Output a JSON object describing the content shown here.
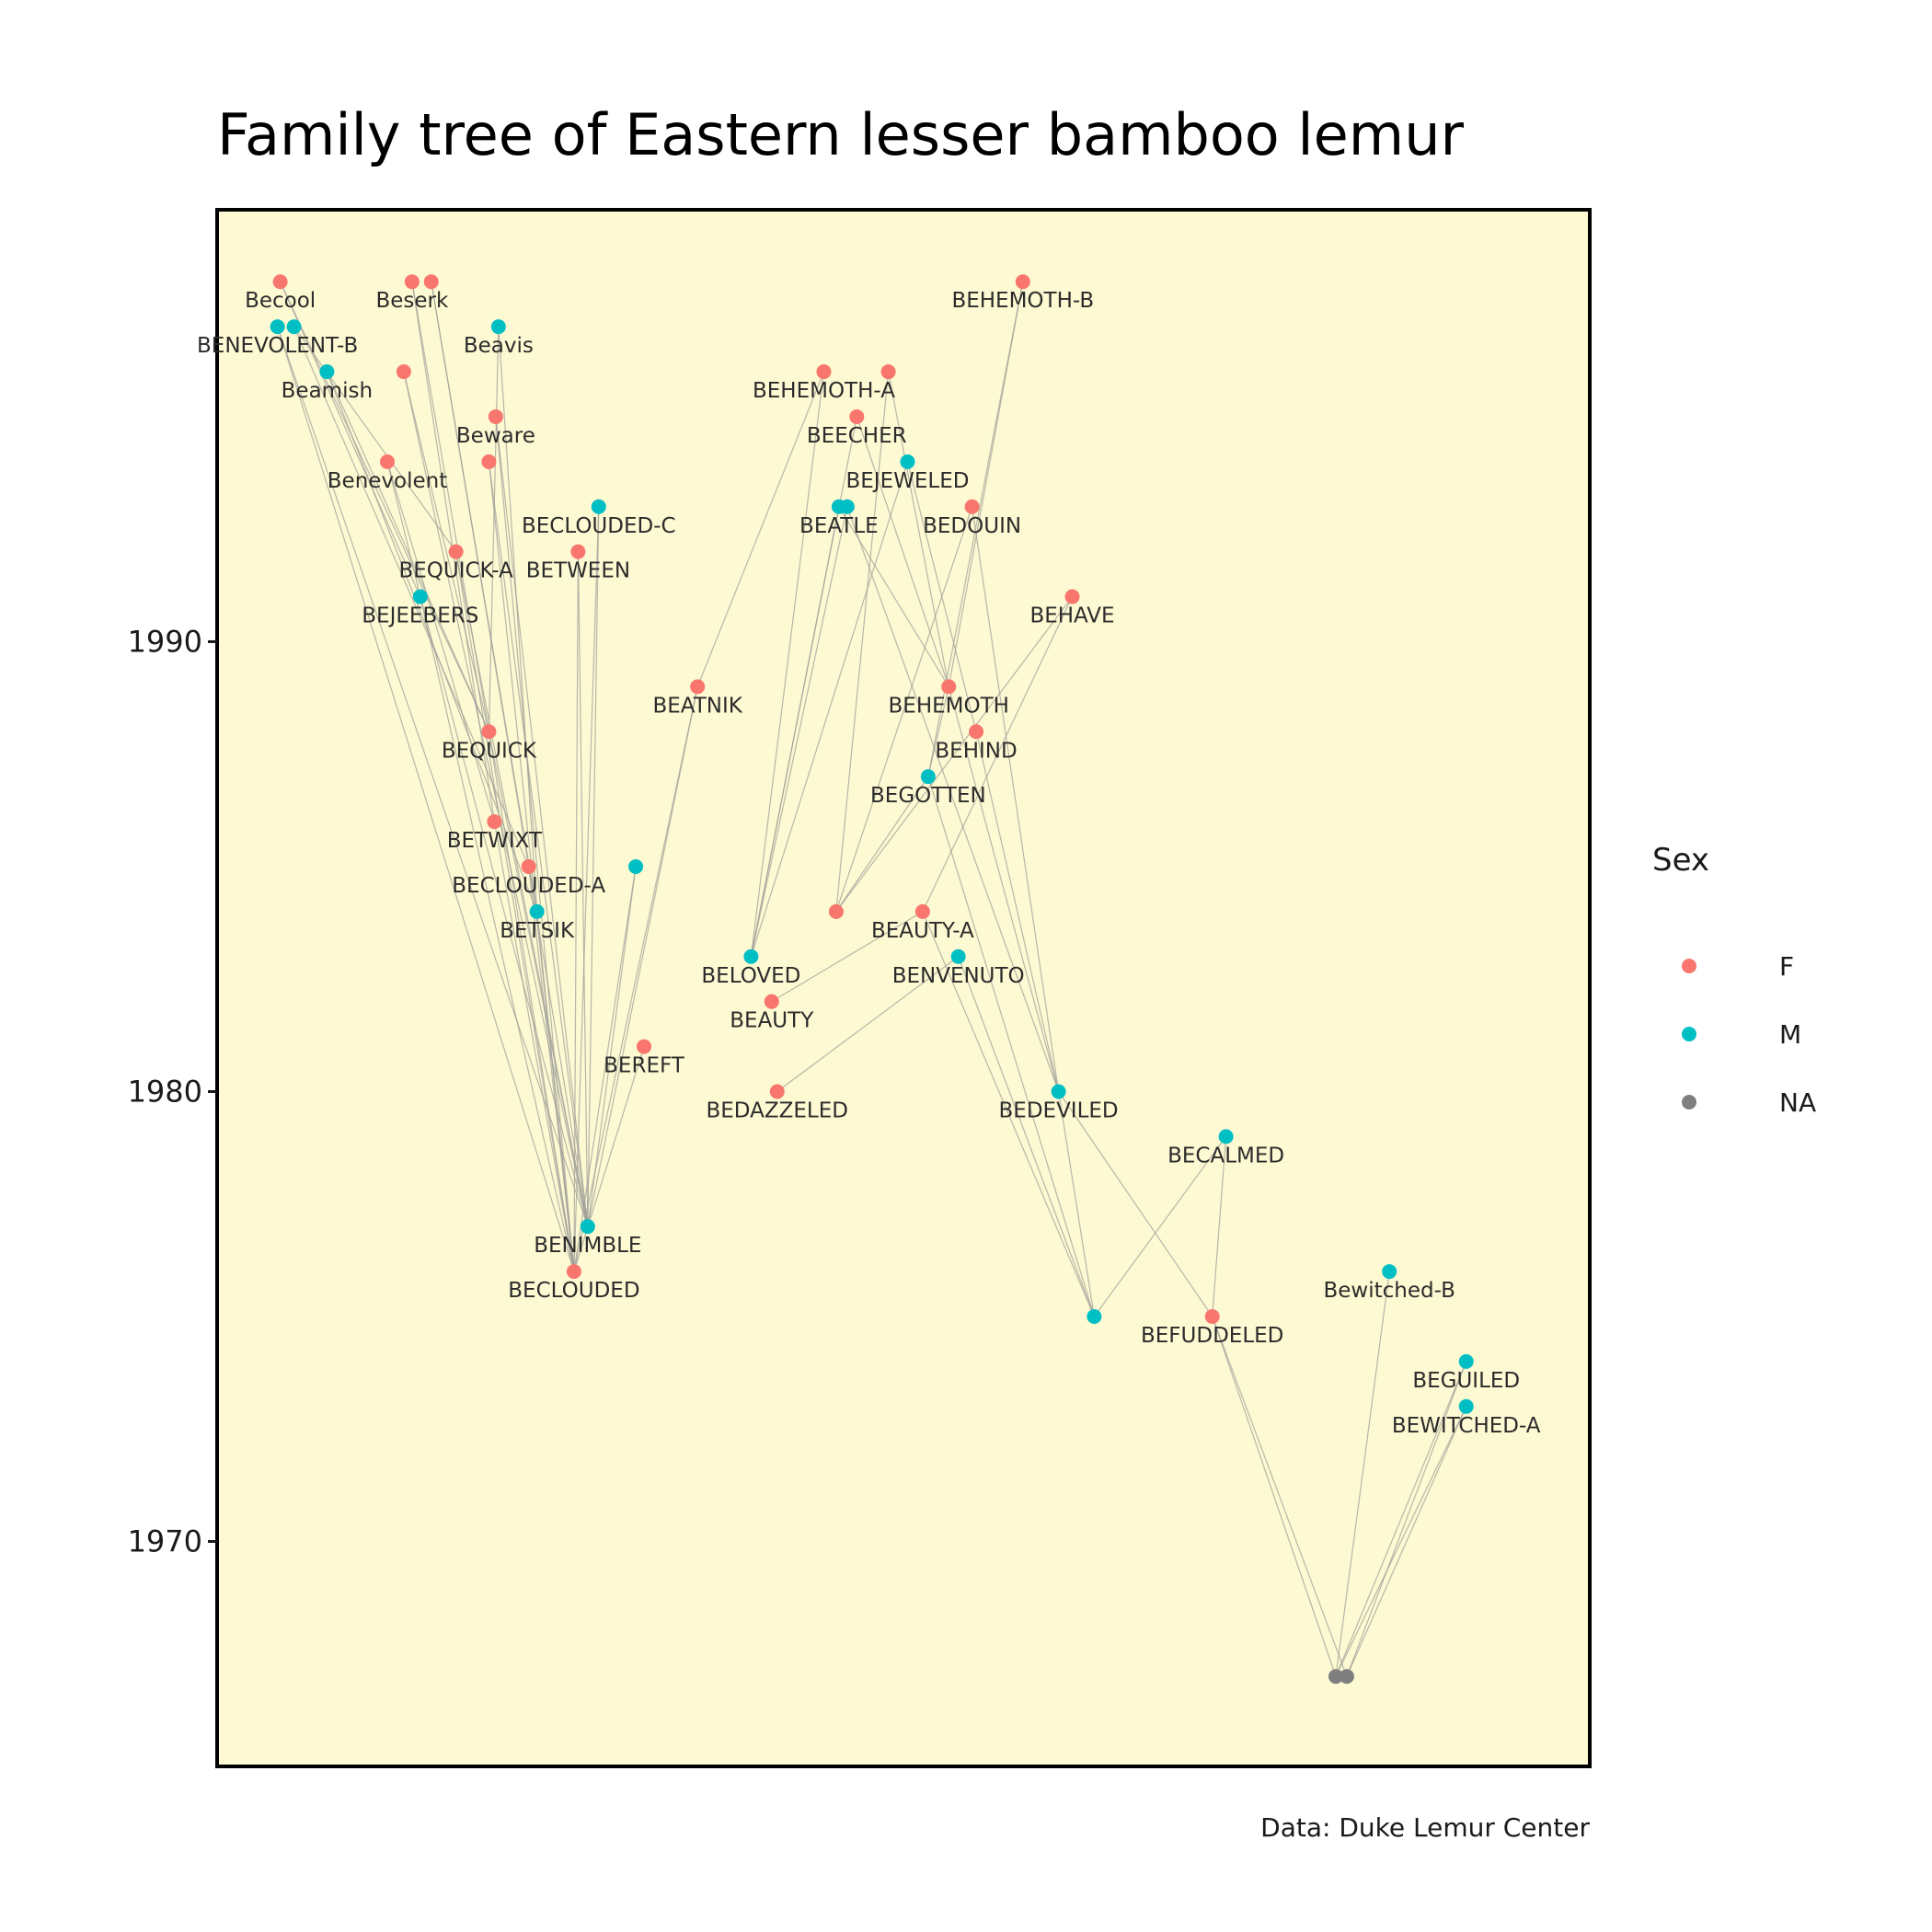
{
  "chart_data": {
    "type": "network",
    "title": "Family tree of Eastern lesser bamboo lemur",
    "caption": "Data: Duke Lemur Center",
    "y_axis": {
      "label": "",
      "ticks": [
        1970,
        1980,
        1990
      ],
      "range": [
        1965,
        1999.6
      ]
    },
    "x_range": [
      0,
      100
    ],
    "panel_background": "#fdf9d2",
    "edge_color": "#a0a09a",
    "legend": {
      "title": "Sex",
      "placement": "right",
      "entries": [
        {
          "key": "F",
          "label": "F",
          "color": "#f8766d"
        },
        {
          "key": "M",
          "label": "M",
          "color": "#00bfc4"
        },
        {
          "key": "NA",
          "label": "NA",
          "color": "#7f7f7f"
        }
      ]
    },
    "nodes": [
      {
        "id": "becool",
        "label": "Becool",
        "x": 4.6,
        "year": 1998.0,
        "sex": "F"
      },
      {
        "id": "beserk",
        "label": "Beserk",
        "x": 14.2,
        "year": 1998.0,
        "sex": "F"
      },
      {
        "id": "beserk2",
        "label": "",
        "x": 15.6,
        "year": 1998.0,
        "sex": "F"
      },
      {
        "id": "behemothb",
        "label": "BEHEMOTH-B",
        "x": 58.7,
        "year": 1998.0,
        "sex": "F"
      },
      {
        "id": "benevolentb",
        "label": "BENEVOLENT-B",
        "x": 4.4,
        "year": 1997.0,
        "sex": "M"
      },
      {
        "id": "benevolentb2",
        "label": "",
        "x": 5.6,
        "year": 1997.0,
        "sex": "M"
      },
      {
        "id": "beavis",
        "label": "Beavis",
        "x": 20.5,
        "year": 1997.0,
        "sex": "M"
      },
      {
        "id": "beamish",
        "label": "Beamish",
        "x": 8.0,
        "year": 1996.0,
        "sex": "M"
      },
      {
        "id": "f1",
        "label": "",
        "x": 13.6,
        "year": 1996.0,
        "sex": "F"
      },
      {
        "id": "behemotha",
        "label": "BEHEMOTH-A",
        "x": 44.2,
        "year": 1996.0,
        "sex": "F"
      },
      {
        "id": "behemotha2",
        "label": "",
        "x": 48.9,
        "year": 1996.0,
        "sex": "F"
      },
      {
        "id": "beware",
        "label": "Beware",
        "x": 20.3,
        "year": 1995.0,
        "sex": "F"
      },
      {
        "id": "beecher",
        "label": "BEECHER",
        "x": 46.6,
        "year": 1995.0,
        "sex": "F"
      },
      {
        "id": "benevolent",
        "label": "Benevolent",
        "x": 12.4,
        "year": 1994.0,
        "sex": "F"
      },
      {
        "id": "f2",
        "label": "",
        "x": 19.8,
        "year": 1994.0,
        "sex": "F"
      },
      {
        "id": "bejeweled",
        "label": "BEJEWELED",
        "x": 50.3,
        "year": 1994.0,
        "sex": "M"
      },
      {
        "id": "beclouded_c",
        "label": "BECLOUDED-C",
        "x": 27.8,
        "year": 1993.0,
        "sex": "M"
      },
      {
        "id": "beatle",
        "label": "BEATLE",
        "x": 45.3,
        "year": 1993.0,
        "sex": "M"
      },
      {
        "id": "beatle2",
        "label": "",
        "x": 45.9,
        "year": 1993.0,
        "sex": "M"
      },
      {
        "id": "bedouin",
        "label": "BEDOUIN",
        "x": 55.0,
        "year": 1993.0,
        "sex": "F"
      },
      {
        "id": "bequick_a",
        "label": "BEQUICK-A",
        "x": 17.4,
        "year": 1992.0,
        "sex": "F"
      },
      {
        "id": "between",
        "label": "BETWEEN",
        "x": 26.3,
        "year": 1992.0,
        "sex": "F"
      },
      {
        "id": "bejeebers",
        "label": "BEJEEBERS",
        "x": 14.8,
        "year": 1991.0,
        "sex": "M"
      },
      {
        "id": "behave",
        "label": "BEHAVE",
        "x": 62.3,
        "year": 1991.0,
        "sex": "F"
      },
      {
        "id": "beatnik",
        "label": "BEATNIK",
        "x": 35.0,
        "year": 1989.0,
        "sex": "F"
      },
      {
        "id": "behemoth",
        "label": "BEHEMOTH",
        "x": 53.3,
        "year": 1989.0,
        "sex": "F"
      },
      {
        "id": "bequick",
        "label": "BEQUICK",
        "x": 19.8,
        "year": 1988.0,
        "sex": "F"
      },
      {
        "id": "behind",
        "label": "BEHIND",
        "x": 55.3,
        "year": 1988.0,
        "sex": "F"
      },
      {
        "id": "begotten",
        "label": "BEGOTTEN",
        "x": 51.8,
        "year": 1987.0,
        "sex": "M"
      },
      {
        "id": "betwixt",
        "label": "BETWIXT",
        "x": 20.2,
        "year": 1986.0,
        "sex": "F"
      },
      {
        "id": "beclouded_a",
        "label": "BECLOUDED-A",
        "x": 22.7,
        "year": 1985.0,
        "sex": "F"
      },
      {
        "id": "m1",
        "label": "",
        "x": 30.5,
        "year": 1985.0,
        "sex": "M"
      },
      {
        "id": "betsik",
        "label": "BETSIK",
        "x": 23.3,
        "year": 1984.0,
        "sex": "M"
      },
      {
        "id": "f3",
        "label": "",
        "x": 45.1,
        "year": 1984.0,
        "sex": "F"
      },
      {
        "id": "beauty_a",
        "label": "BEAUTY-A",
        "x": 51.4,
        "year": 1984.0,
        "sex": "F"
      },
      {
        "id": "beloved",
        "label": "BELOVED",
        "x": 38.9,
        "year": 1983.0,
        "sex": "M"
      },
      {
        "id": "benvenuto",
        "label": "BENVENUTO",
        "x": 54.0,
        "year": 1983.0,
        "sex": "M"
      },
      {
        "id": "beauty",
        "label": "BEAUTY",
        "x": 40.4,
        "year": 1982.0,
        "sex": "F"
      },
      {
        "id": "bereft",
        "label": "BEREFT",
        "x": 31.1,
        "year": 1981.0,
        "sex": "F"
      },
      {
        "id": "bedazzeled",
        "label": "BEDAZZELED",
        "x": 40.8,
        "year": 1980.0,
        "sex": "F"
      },
      {
        "id": "bedeviled",
        "label": "BEDEVILED",
        "x": 61.3,
        "year": 1980.0,
        "sex": "M"
      },
      {
        "id": "becalmed",
        "label": "BECALMED",
        "x": 73.5,
        "year": 1979.0,
        "sex": "M"
      },
      {
        "id": "benimble",
        "label": "BENIMBLE",
        "x": 27.0,
        "year": 1977.0,
        "sex": "M"
      },
      {
        "id": "beclouded",
        "label": "BECLOUDED",
        "x": 26.0,
        "year": 1976.0,
        "sex": "F"
      },
      {
        "id": "bewitched_b",
        "label": "Bewitched-B",
        "x": 85.4,
        "year": 1976.0,
        "sex": "M"
      },
      {
        "id": "m2",
        "label": "",
        "x": 63.9,
        "year": 1975.0,
        "sex": "M"
      },
      {
        "id": "befuddeled",
        "label": "BEFUDDELED",
        "x": 72.5,
        "year": 1975.0,
        "sex": "F"
      },
      {
        "id": "beguiled",
        "label": "BEGUILED",
        "x": 91.0,
        "year": 1974.0,
        "sex": "M"
      },
      {
        "id": "bewitched_a",
        "label": "BEWITCHED-A",
        "x": 91.0,
        "year": 1973.0,
        "sex": "M"
      },
      {
        "id": "na1",
        "label": "",
        "x": 81.5,
        "year": 1967.0,
        "sex": "NA"
      },
      {
        "id": "na2",
        "label": "",
        "x": 82.3,
        "year": 1967.0,
        "sex": "NA"
      }
    ],
    "edges": [
      [
        "becool",
        "bejeebers"
      ],
      [
        "becool",
        "bequick"
      ],
      [
        "benevolentb",
        "beclouded"
      ],
      [
        "benevolentb",
        "benimble"
      ],
      [
        "benevolentb2",
        "bequick_a"
      ],
      [
        "benevolentb2",
        "beclouded_a"
      ],
      [
        "beamish",
        "bequick"
      ],
      [
        "beamish",
        "betsik"
      ],
      [
        "beserk",
        "bequick"
      ],
      [
        "beserk",
        "betwixt"
      ],
      [
        "beserk2",
        "beclouded_a"
      ],
      [
        "beserk2",
        "betsik"
      ],
      [
        "beavis",
        "bequick"
      ],
      [
        "beavis",
        "betsik"
      ],
      [
        "beware",
        "beclouded"
      ],
      [
        "beware",
        "benimble"
      ],
      [
        "benevolent",
        "bejeebers"
      ],
      [
        "benevolent",
        "betwixt"
      ],
      [
        "f1",
        "bequick"
      ],
      [
        "f1",
        "benimble"
      ],
      [
        "f2",
        "benimble"
      ],
      [
        "f2",
        "beclouded"
      ],
      [
        "bequick_a",
        "benimble"
      ],
      [
        "bequick_a",
        "beclouded"
      ],
      [
        "bejeebers",
        "beclouded"
      ],
      [
        "bejeebers",
        "benimble"
      ],
      [
        "bequick",
        "benimble"
      ],
      [
        "bequick",
        "beclouded"
      ],
      [
        "betwixt",
        "beclouded"
      ],
      [
        "beclouded_a",
        "benimble"
      ],
      [
        "beclouded_a",
        "beclouded"
      ],
      [
        "betsik",
        "beclouded"
      ],
      [
        "between",
        "beclouded"
      ],
      [
        "between",
        "benimble"
      ],
      [
        "beclouded_c",
        "beclouded"
      ],
      [
        "beclouded_c",
        "benimble"
      ],
      [
        "m1",
        "benimble"
      ],
      [
        "m1",
        "beclouded"
      ],
      [
        "bereft",
        "beclouded"
      ],
      [
        "beatnik",
        "benimble"
      ],
      [
        "beatnik",
        "beclouded"
      ],
      [
        "behemotha",
        "beatnik"
      ],
      [
        "behemotha",
        "beloved"
      ],
      [
        "behemotha2",
        "behemoth"
      ],
      [
        "behemotha2",
        "f3"
      ],
      [
        "beecher",
        "behemoth"
      ],
      [
        "beecher",
        "beloved"
      ],
      [
        "beatle",
        "beloved"
      ],
      [
        "beatle",
        "behemoth"
      ],
      [
        "beatle2",
        "beloved"
      ],
      [
        "beatle2",
        "bedeviled"
      ],
      [
        "bejeweled",
        "beloved"
      ],
      [
        "bejeweled",
        "behind"
      ],
      [
        "bedouin",
        "f3"
      ],
      [
        "bedouin",
        "bedeviled"
      ],
      [
        "behemothb",
        "behemoth"
      ],
      [
        "behemothb",
        "begotten"
      ],
      [
        "behave",
        "f3"
      ],
      [
        "behave",
        "beauty_a"
      ],
      [
        "behemoth",
        "bedeviled"
      ],
      [
        "behemoth",
        "begotten"
      ],
      [
        "behind",
        "bedeviled"
      ],
      [
        "begotten",
        "f3"
      ],
      [
        "begotten",
        "m2"
      ],
      [
        "beauty_a",
        "beauty"
      ],
      [
        "benvenuto",
        "bedazzeled"
      ],
      [
        "benvenuto",
        "m2"
      ],
      [
        "beauty_a",
        "m2"
      ],
      [
        "bedeviled",
        "m2"
      ],
      [
        "bedeviled",
        "befuddeled"
      ],
      [
        "becalmed",
        "befuddeled"
      ],
      [
        "becalmed",
        "m2"
      ],
      [
        "befuddeled",
        "na1"
      ],
      [
        "befuddeled",
        "na2"
      ],
      [
        "bewitched_b",
        "na1"
      ],
      [
        "beguiled",
        "na1"
      ],
      [
        "beguiled",
        "na2"
      ],
      [
        "bewitched_a",
        "na1"
      ],
      [
        "bewitched_a",
        "na2"
      ]
    ]
  }
}
